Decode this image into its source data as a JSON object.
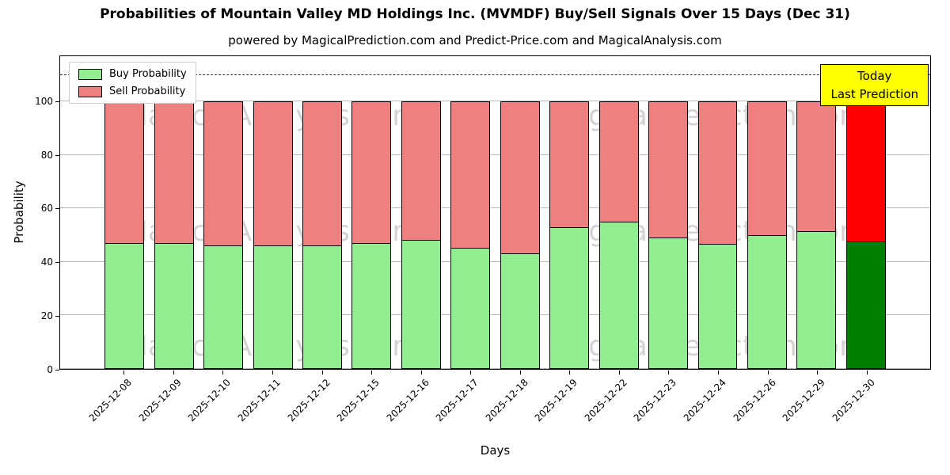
{
  "chart_data": {
    "type": "bar",
    "stacked": true,
    "title": "Probabilities of Mountain Valley MD Holdings Inc. (MVMDF) Buy/Sell Signals Over 15 Days (Dec 31)",
    "subtitle": "powered by MagicalPrediction.com and Predict-Price.com and MagicalAnalysis.com",
    "xlabel": "Days",
    "ylabel": "Probability",
    "categories": [
      "2025-12-08",
      "2025-12-09",
      "2025-12-10",
      "2025-12-11",
      "2025-12-12",
      "2025-12-15",
      "2025-12-16",
      "2025-12-17",
      "2025-12-18",
      "2025-12-19",
      "2025-12-22",
      "2025-12-23",
      "2025-12-24",
      "2025-12-26",
      "2025-12-29",
      "2025-12-30"
    ],
    "series": [
      {
        "name": "Buy Probability",
        "values": [
          47,
          47,
          46,
          46,
          46,
          47,
          48,
          45,
          43,
          53,
          55,
          49,
          46.5,
          50,
          51.5,
          47.5
        ]
      },
      {
        "name": "Sell Probability",
        "values": [
          53,
          53,
          54,
          54,
          54,
          53,
          52,
          55,
          57,
          47,
          45,
          51,
          53.5,
          50,
          48.5,
          52.5
        ]
      }
    ],
    "ylim": [
      0,
      117
    ],
    "yticks": [
      0,
      20,
      40,
      60,
      80,
      100
    ],
    "grid": "horizontal",
    "dashed_line_y": 110,
    "legend_position": "upper left",
    "colors": {
      "buy": "#90EE90",
      "sell": "#F08080",
      "today_buy": "#008000",
      "today_sell": "#FF0000",
      "annotation_bg": "#FFFF00",
      "grid": "#b8b8b8"
    },
    "annotation": {
      "line1": "Today",
      "line2": "Last Prediction"
    },
    "watermarks": [
      "MagicalAnalysis.com",
      "MagicalPrediction.com"
    ]
  }
}
